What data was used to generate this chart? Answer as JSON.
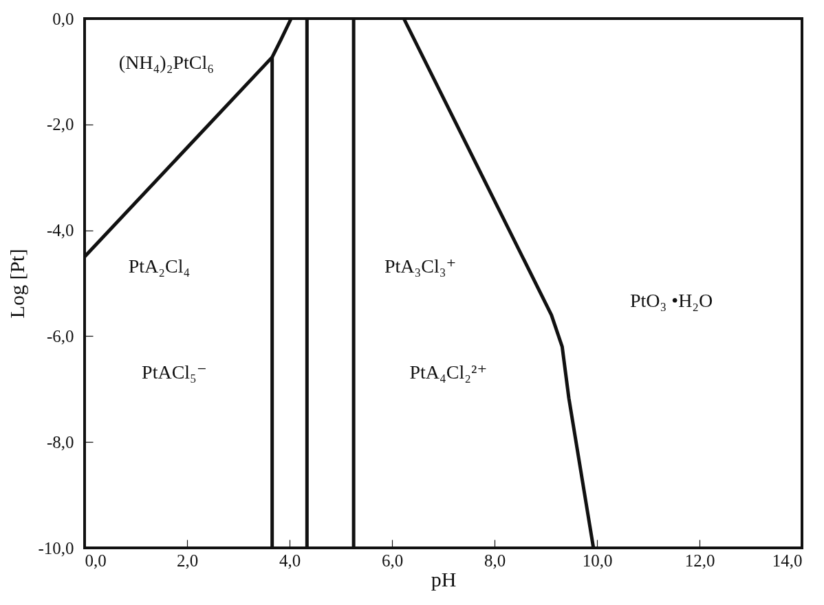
{
  "chart_data": {
    "type": "line",
    "xlabel": "pH",
    "ylabel": "Log [Pt]",
    "xlim": [
      0,
      14
    ],
    "ylim": [
      -10,
      0
    ],
    "xticks": [
      {
        "value": 0,
        "label": "0,0"
      },
      {
        "value": 2,
        "label": "2,0"
      },
      {
        "value": 4,
        "label": "4,0"
      },
      {
        "value": 6,
        "label": "6,0"
      },
      {
        "value": 8,
        "label": "8,0"
      },
      {
        "value": 10,
        "label": "10,0"
      },
      {
        "value": 12,
        "label": "12,0"
      },
      {
        "value": 14,
        "label": "14,0"
      }
    ],
    "yticks": [
      {
        "value": 0,
        "label": "0,0"
      },
      {
        "value": -2,
        "label": "-2,0"
      },
      {
        "value": -4,
        "label": "-4,0"
      },
      {
        "value": -6,
        "label": "-6,0"
      },
      {
        "value": -8,
        "label": "-8,0"
      },
      {
        "value": -10,
        "label": "-10,0"
      }
    ],
    "grid": false,
    "marker": "none",
    "line_style": "solid",
    "series": [
      {
        "color": "#111111",
        "x": [
          0,
          3.66,
          3.83,
          4.03
        ],
        "values": [
          -4.5,
          -0.73,
          -0.4,
          0
        ]
      },
      {
        "color": "#111111",
        "x": [
          3.66,
          3.66
        ],
        "values": [
          -0.73,
          -10
        ]
      },
      {
        "color": "#111111",
        "x": [
          4.34,
          4.34
        ],
        "values": [
          0,
          -10
        ]
      },
      {
        "color": "#111111",
        "x": [
          5.25,
          5.25
        ],
        "values": [
          0,
          -10
        ]
      },
      {
        "color": "#111111",
        "x": [
          6.23,
          9.11,
          9.32,
          9.45,
          9.93
        ],
        "values": [
          0,
          -5.6,
          -6.2,
          -7.17,
          -10
        ]
      }
    ],
    "annotations": [
      "(NH₄)₂PtCl₆",
      "PtA₂Cl₄",
      "PtACl₅⁻",
      "PtA₃Cl₃⁺",
      "PtA₄Cl₂²⁺",
      "PtO₃ •H₂O"
    ]
  }
}
